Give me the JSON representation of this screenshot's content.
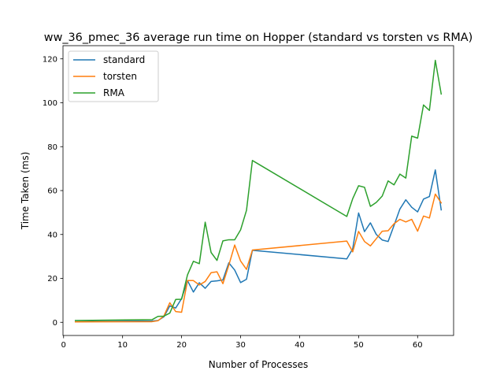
{
  "chart_data": {
    "type": "line",
    "title": "ww_36_pmec_36 average run time on Hopper (standard vs torsten vs RMA)",
    "xlabel": "Number of Processes",
    "ylabel": "Time Taken (ms)",
    "xlim": [
      -0.1,
      66.1
    ],
    "ylim": [
      -6.0,
      126.0
    ],
    "xticks": [
      0,
      10,
      20,
      30,
      40,
      50,
      60
    ],
    "xtick_labels": [
      "0",
      "10",
      "20",
      "30",
      "40",
      "50",
      "60"
    ],
    "yticks": [
      0,
      20,
      40,
      60,
      80,
      100,
      120
    ],
    "ytick_labels": [
      "0",
      "20",
      "40",
      "60",
      "80",
      "100",
      "120"
    ],
    "grid": false,
    "legend_position": "top-left",
    "series": [
      {
        "name": "standard",
        "color": "#1f77b4",
        "x": [
          2,
          15,
          16,
          17,
          18,
          19,
          20,
          21,
          22,
          23,
          24,
          25,
          26,
          27,
          28,
          29,
          30,
          31,
          32,
          48,
          49,
          50,
          51,
          52,
          53,
          54,
          55,
          56,
          57,
          58,
          59,
          60,
          61,
          62,
          63,
          64
        ],
        "y": [
          0.3,
          0.6,
          0.8,
          2.5,
          7.5,
          6.5,
          10.8,
          19.0,
          13.8,
          18.0,
          15.5,
          18.6,
          18.9,
          19.3,
          27.1,
          23.8,
          18.1,
          19.6,
          32.8,
          28.9,
          33.5,
          49.8,
          41.3,
          45.3,
          40.0,
          37.5,
          36.8,
          44.1,
          51.6,
          55.8,
          52.4,
          50.3,
          56.1,
          57.3,
          69.4,
          51.2
        ]
      },
      {
        "name": "torsten",
        "color": "#ff7f0e",
        "x": [
          2,
          15,
          16,
          17,
          18,
          19,
          20,
          21,
          22,
          23,
          24,
          25,
          26,
          27,
          28,
          29,
          30,
          31,
          32,
          48,
          49,
          50,
          51,
          52,
          53,
          54,
          55,
          56,
          57,
          58,
          59,
          60,
          61,
          62,
          63,
          64
        ],
        "y": [
          0.2,
          0.3,
          0.7,
          2.9,
          8.9,
          4.9,
          4.6,
          19.0,
          19.0,
          17.0,
          18.6,
          22.6,
          23.0,
          17.6,
          26.0,
          35.2,
          27.9,
          24.1,
          32.9,
          37.0,
          32.1,
          41.4,
          36.8,
          34.8,
          38.1,
          41.5,
          41.7,
          44.9,
          46.9,
          45.7,
          46.9,
          41.5,
          48.4,
          47.5,
          58.4,
          54.4
        ]
      },
      {
        "name": "RMA",
        "color": "#2ca02c",
        "x": [
          2,
          15,
          16,
          17,
          18,
          19,
          20,
          21,
          22,
          23,
          24,
          25,
          26,
          27,
          28,
          29,
          30,
          31,
          32,
          48,
          49,
          50,
          51,
          52,
          53,
          54,
          55,
          56,
          57,
          58,
          59,
          60,
          61,
          62,
          63,
          64
        ],
        "y": [
          0.8,
          1.2,
          2.7,
          2.8,
          4.2,
          10.4,
          10.5,
          21.6,
          27.8,
          26.7,
          45.6,
          31.8,
          28.2,
          37.1,
          37.6,
          37.6,
          42.1,
          51.0,
          73.7,
          48.2,
          56.3,
          62.2,
          61.5,
          52.8,
          54.6,
          57.5,
          64.4,
          62.6,
          67.5,
          65.7,
          84.8,
          83.9,
          99.0,
          96.5,
          119.3,
          104.0
        ]
      }
    ]
  }
}
